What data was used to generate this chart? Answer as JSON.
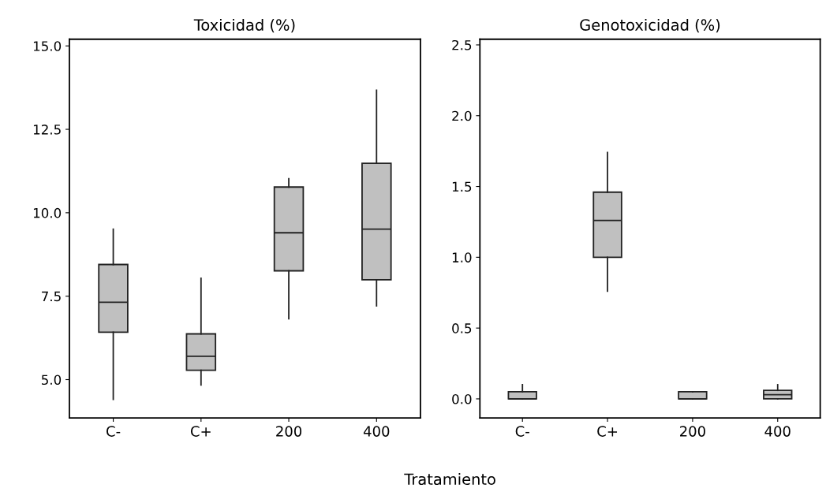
{
  "chart_data": [
    {
      "type": "box",
      "title": "Toxicidad (%)",
      "xlabel": "Tratamiento",
      "categories": [
        "C-",
        "C+",
        "200",
        "400"
      ],
      "color": "#c0c0c0",
      "boxes": [
        {
          "low": 4.41,
          "q1": 6.42,
          "median": 7.32,
          "q3": 8.45,
          "high": 9.51
        },
        {
          "low": 4.84,
          "q1": 5.28,
          "median": 5.7,
          "q3": 6.37,
          "high": 8.04
        },
        {
          "low": 6.82,
          "q1": 8.26,
          "median": 9.4,
          "q3": 10.77,
          "high": 11.02
        },
        {
          "low": 7.21,
          "q1": 7.99,
          "median": 9.51,
          "q3": 11.48,
          "high": 13.67
        }
      ],
      "ylim": [
        3.85,
        15.2
      ],
      "yticks": [
        {
          "value": 5,
          "label": "5.0"
        },
        7.5,
        {
          "value": 10,
          "label": "10.0"
        },
        12.5,
        {
          "value": 15,
          "label": "15.0"
        }
      ],
      "grid": false
    },
    {
      "type": "box",
      "title": "Genotoxicidad (%)",
      "categories": [
        "C-",
        "C+",
        "200",
        "400"
      ],
      "color": "#c0c0c0",
      "boxes": [
        {
          "low": 0,
          "q1": 0,
          "median": 0,
          "q3": 0.05,
          "high": 0.1
        },
        {
          "low": 0.76,
          "q1": 1.0,
          "median": 1.26,
          "q3": 1.46,
          "high": 1.74
        },
        {
          "low": 0,
          "q1": 0,
          "median": 0,
          "q3": 0.05,
          "high": 0.05
        },
        {
          "low": 0,
          "q1": 0,
          "median": 0.03,
          "q3": 0.06,
          "high": 0.1
        }
      ],
      "ylim": [
        -0.135,
        2.54
      ],
      "yticks": [
        {
          "value": 0,
          "label": "0.0"
        },
        0.5,
        {
          "value": 1,
          "label": "1.0"
        },
        1.5,
        {
          "value": 2,
          "label": "2.0"
        },
        2.5
      ],
      "grid": false
    }
  ]
}
